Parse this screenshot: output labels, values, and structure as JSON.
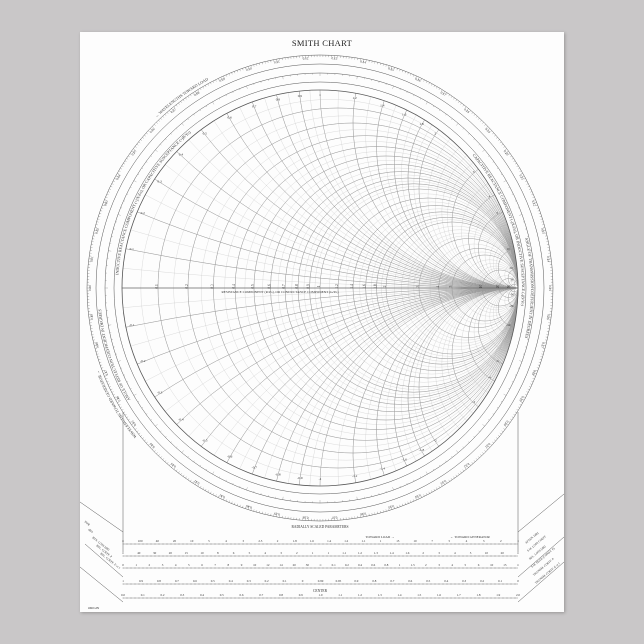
{
  "title": "SMITH CHART",
  "colors": {
    "background": "#c9c7c8",
    "paper": "#fdfdfd",
    "grid": "#9a9a9a",
    "ink": "#333333"
  },
  "grid": {
    "resistance_labels": [
      0.1,
      0.2,
      0.3,
      0.4,
      0.5,
      0.6,
      0.7,
      0.8,
      0.9,
      1.0,
      1.2,
      1.4,
      1.6,
      1.8,
      2.0,
      3.0,
      4.0,
      5.0,
      10,
      20,
      50
    ],
    "reactance_labels": [
      0.1,
      0.2,
      0.3,
      0.4,
      0.5,
      0.6,
      0.7,
      0.8,
      0.9,
      1.0,
      1.2,
      1.4,
      1.6,
      1.8,
      2.0,
      3.0,
      4.0,
      5.0,
      10,
      20,
      50
    ]
  },
  "rings": {
    "toward_generator": "WAVELENGTHS TOWARD GENERATOR →",
    "toward_load": "← WAVELENGTHS TOWARD LOAD",
    "reflection_angle": "ANGLE OF REFLECTION COEFFICIENT IN DEGREES",
    "transmission_angle": "ANGLE OF TRANSMISSION COEFFICIENT IN DEGREES",
    "inductive": "INDUCTIVE REACTANCE COMPONENT (+jX/Zo), OR CAPACITIVE SUSCEPTANCE (+jB/Yo)",
    "capacitive": "CAPACITIVE REACTANCE COMPONENT (-jX/Zo), OR INDUCTIVE SUSCEPTANCE (-jB/Yo)",
    "resistance": "RESISTANCE COMPONENT (R/Zo), OR CONDUCTANCE COMPONENT (G/Yo)"
  },
  "scales": {
    "header": "RADIALLY SCALED PARAMETERS",
    "toward_load": "TOWARD LOAD →",
    "toward_generator": "← TOWARD GENERATOR",
    "center": "CENTER",
    "origin": "ORIGIN",
    "left_labels": [
      "SWR",
      "dBS",
      "RTN. LOSS [dB]",
      "RFL. COEFF. P",
      "RFL. COEFF. E or I"
    ],
    "right_labels": [
      "ATTEN. [dB]",
      "S.W. LOSS COEFF",
      "RFL. LOSS [dB]",
      "S.W. PEAK (CONST. P)",
      "TRANSM. COEFF. P",
      "TRANSM. COEFF. E or I"
    ],
    "rows": [
      [
        "∞",
        "100",
        "40",
        "20",
        "10",
        "5",
        "4",
        "3",
        "2.5",
        "2",
        "1.8",
        "1.6",
        "1.4",
        "1.2",
        "1.1",
        "1",
        "15",
        "10",
        "7",
        "5",
        "4",
        "3",
        "2",
        "1"
      ],
      [
        "∞",
        "40",
        "30",
        "20",
        "15",
        "10",
        "8",
        "6",
        "5",
        "4",
        "3",
        "2",
        "1",
        "1",
        "1.1",
        "1.2",
        "1.3",
        "1.4",
        "1.6",
        "2",
        "3",
        "4",
        "5",
        "10",
        "20",
        "∞"
      ],
      [
        "0",
        "1",
        "2",
        "3",
        "4",
        "5",
        "6",
        "7",
        "8",
        "9",
        "10",
        "12",
        "14",
        "20",
        "30",
        "∞",
        "0.1",
        "0.2",
        "0.4",
        "0.6",
        "0.8",
        "1",
        "1.5",
        "2",
        "3",
        "4",
        "5",
        "6",
        "10",
        "15",
        "∞"
      ],
      [
        "1",
        "0.9",
        "0.8",
        "0.7",
        "0.6",
        "0.5",
        "0.4",
        "0.3",
        "0.2",
        "0.1",
        "0",
        "0.99",
        "0.95",
        "0.9",
        "0.8",
        "0.7",
        "0.6",
        "0.5",
        "0.4",
        "0.3",
        "0.2",
        "0.1",
        "0"
      ],
      [
        "0.0",
        "0.1",
        "0.2",
        "0.3",
        "0.4",
        "0.5",
        "0.6",
        "0.7",
        "0.8",
        "0.9",
        "1.0",
        "1.1",
        "1.2",
        "1.3",
        "1.4",
        "1.5",
        "1.6",
        "1.7",
        "1.8",
        "1.9",
        "2.0"
      ]
    ]
  }
}
